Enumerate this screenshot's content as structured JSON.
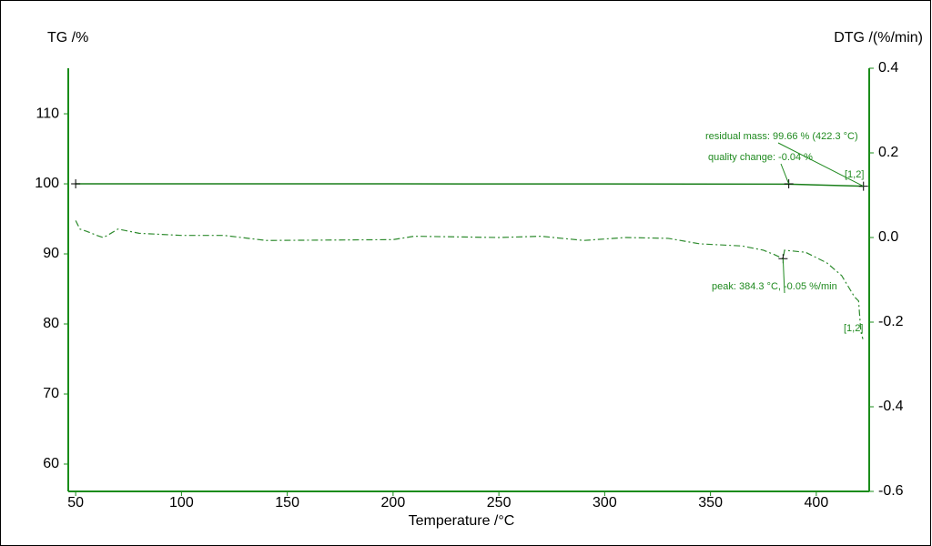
{
  "chart_data": {
    "type": "line",
    "y_title": "TG /%",
    "y2_title": "DTG /(%/min)",
    "x_title": "Temperature /°C",
    "xlim": [
      46.5,
      425
    ],
    "xticks": [
      50,
      100,
      150,
      200,
      250,
      300,
      350,
      400
    ],
    "ylim": [
      56.1,
      116.5
    ],
    "yticks": [
      60,
      70,
      80,
      90,
      100,
      110
    ],
    "y2lim": [
      -0.6,
      0.4
    ],
    "y2ticks": [
      0.4,
      0.2,
      {
        "value": 0,
        "label": "0.0"
      },
      -0.2,
      -0.4,
      -0.6
    ],
    "axis_color": "#1a8c1a",
    "series": [
      {
        "name": "TG",
        "color": "#1a7f1a",
        "style": "solid",
        "x": [
          50,
          100,
          200,
          300,
          387,
          422.3
        ],
        "values": [
          100,
          100,
          100,
          99.98,
          99.96,
          99.66
        ]
      },
      {
        "name": "DTG",
        "color": "#2e8b2e",
        "style": "dashdot",
        "axis": "y2",
        "x": [
          50,
          51,
          52,
          55,
          60,
          63,
          65,
          70,
          80,
          100,
          120,
          140,
          200,
          210,
          250,
          270,
          290,
          310,
          330,
          345,
          365,
          375,
          380,
          384.3,
          385,
          395,
          405,
          412,
          418,
          420,
          421,
          422
        ],
        "values": [
          0.04,
          0.03,
          0.02,
          0.015,
          0.005,
          0.0,
          0.005,
          0.02,
          0.01,
          0.005,
          0.005,
          -0.007,
          -0.005,
          0.003,
          0.0,
          0.003,
          -0.007,
          0.0,
          -0.002,
          -0.015,
          -0.02,
          -0.03,
          -0.04,
          -0.05,
          -0.03,
          -0.035,
          -0.06,
          -0.09,
          -0.14,
          -0.15,
          -0.22,
          -0.24
        ]
      }
    ],
    "annotations": [
      {
        "text": "residual mass: 99.66 % (422.3 °C)",
        "x": 422.3,
        "y": 99.66
      },
      {
        "text": "quality change: -0.04 %",
        "x": 387,
        "y": 100
      },
      {
        "text": "[1,2]",
        "x": 422.3,
        "y": 99.66
      },
      {
        "text": "peak: 384.3 °C, -0.05 %/min",
        "x": 384.3,
        "y": -0.05,
        "axis": "y2"
      },
      {
        "text": "[1,2]",
        "x": 422,
        "y": -0.24,
        "axis": "y2"
      }
    ]
  }
}
